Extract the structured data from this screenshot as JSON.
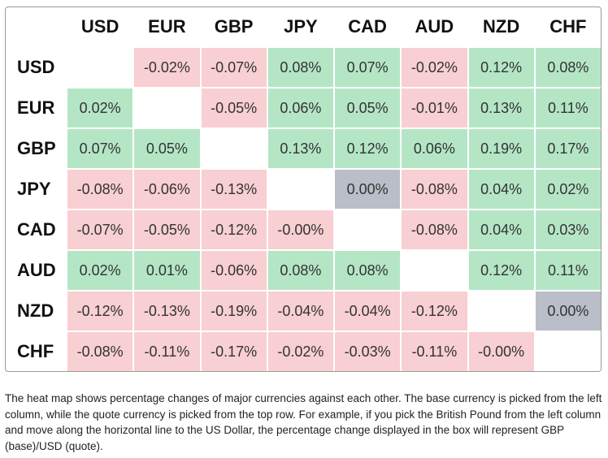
{
  "table": {
    "columns": [
      "USD",
      "EUR",
      "GBP",
      "JPY",
      "CAD",
      "AUD",
      "NZD",
      "CHF"
    ],
    "rows": [
      {
        "label": "USD",
        "cells": [
          null,
          "-0.02%",
          "-0.07%",
          "0.08%",
          "0.07%",
          "-0.02%",
          "0.12%",
          "0.08%"
        ]
      },
      {
        "label": "EUR",
        "cells": [
          "0.02%",
          null,
          "-0.05%",
          "0.06%",
          "0.05%",
          "-0.01%",
          "0.13%",
          "0.11%"
        ]
      },
      {
        "label": "GBP",
        "cells": [
          "0.07%",
          "0.05%",
          null,
          "0.13%",
          "0.12%",
          "0.06%",
          "0.19%",
          "0.17%"
        ]
      },
      {
        "label": "JPY",
        "cells": [
          "-0.08%",
          "-0.06%",
          "-0.13%",
          null,
          "0.00%",
          "-0.08%",
          "0.04%",
          "0.02%"
        ]
      },
      {
        "label": "CAD",
        "cells": [
          "-0.07%",
          "-0.05%",
          "-0.12%",
          "-0.00%",
          null,
          "-0.08%",
          "0.04%",
          "0.03%"
        ]
      },
      {
        "label": "AUD",
        "cells": [
          "0.02%",
          "0.01%",
          "-0.06%",
          "0.08%",
          "0.08%",
          null,
          "0.12%",
          "0.11%"
        ]
      },
      {
        "label": "NZD",
        "cells": [
          "-0.12%",
          "-0.13%",
          "-0.19%",
          "-0.04%",
          "-0.04%",
          "-0.12%",
          null,
          "0.00%"
        ]
      },
      {
        "label": "CHF",
        "cells": [
          "-0.08%",
          "-0.11%",
          "-0.17%",
          "-0.02%",
          "-0.03%",
          "-0.11%",
          "-0.00%",
          null
        ]
      }
    ],
    "colors": {
      "positive": "#b4e6c6",
      "negative": "#f8cfd2",
      "zero": "#b9bec8",
      "empty": "#ffffff"
    }
  },
  "caption": "The heat map shows percentage changes of major currencies against each other. The base currency is picked from the left column, while the quote currency is picked from the top row. For example, if you pick the British Pound from the left column and move along the horizontal line to the US Dollar, the percentage change displayed in the box will represent GBP (base)/USD (quote)."
}
